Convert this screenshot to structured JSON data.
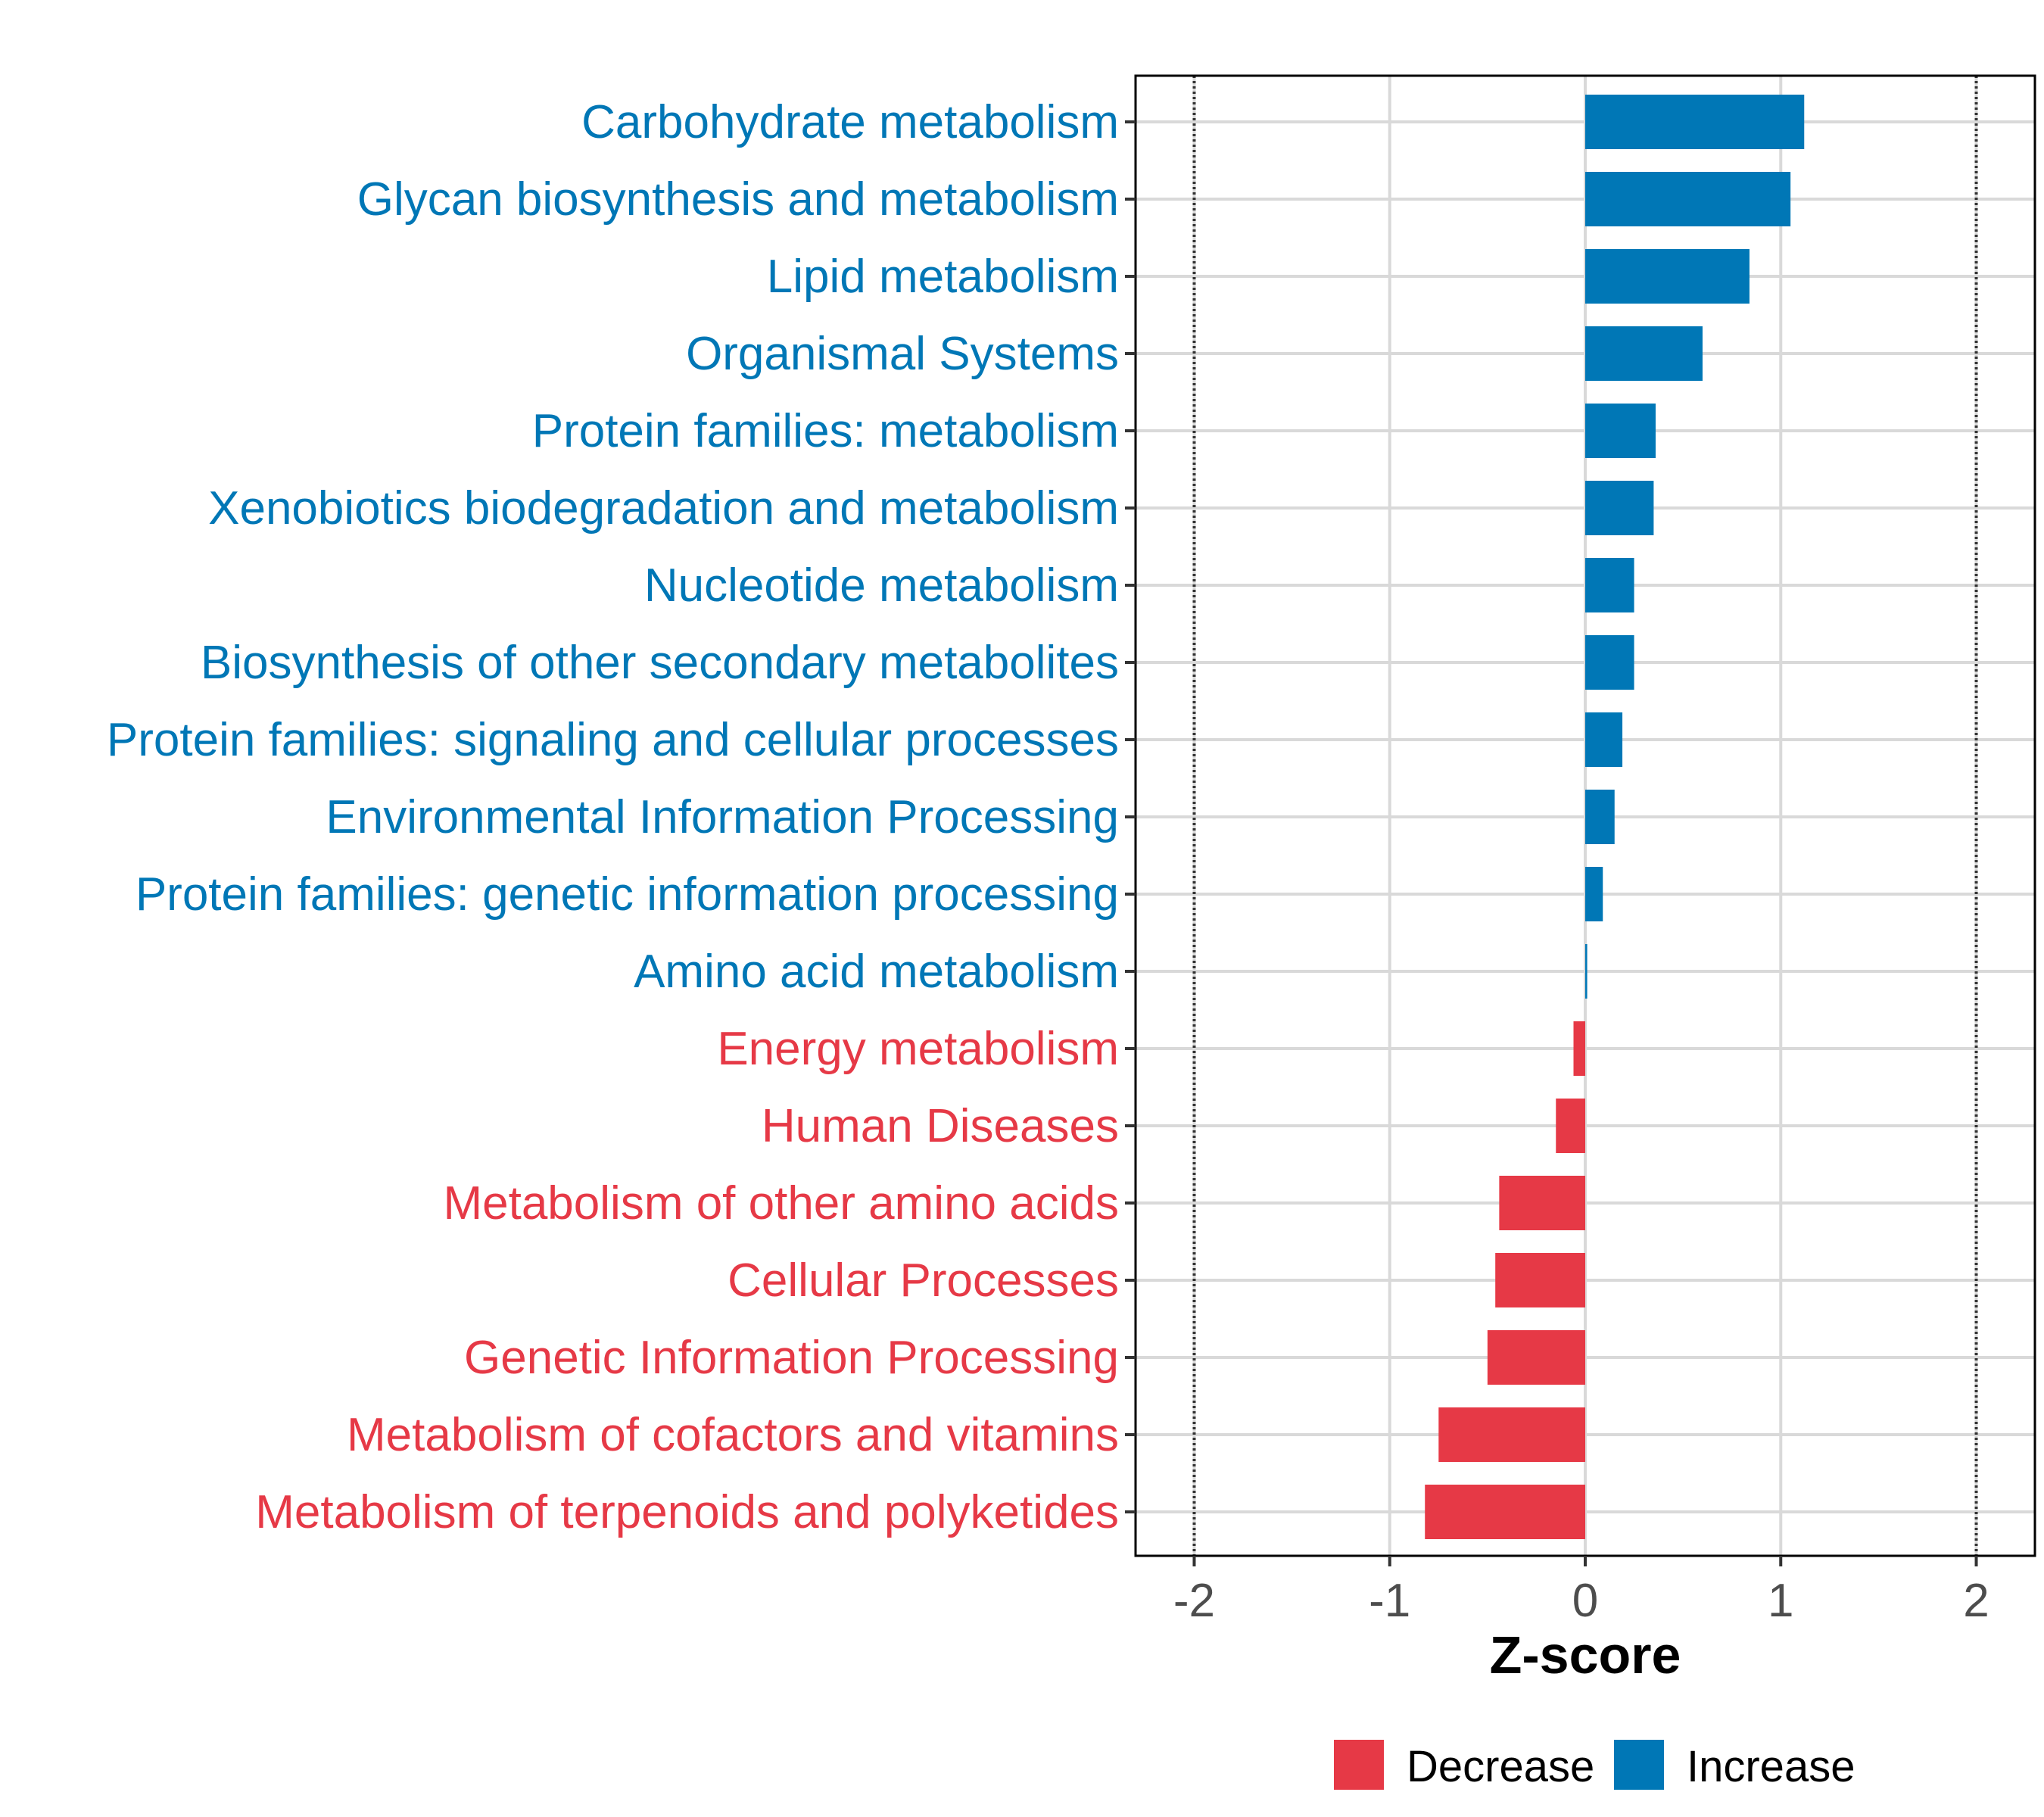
{
  "chart_data": {
    "type": "bar",
    "orientation": "horizontal",
    "title": "",
    "xlabel": "Z-score",
    "ylabel": "",
    "xlim": [
      -2.3,
      2.3
    ],
    "xticks": [
      -2,
      -1,
      0,
      1,
      2
    ],
    "xtick_labels": [
      "-2",
      "-1",
      "0",
      "1",
      "2"
    ],
    "reference_lines": [
      -2,
      2
    ],
    "grid": true,
    "legend_position": "bottom",
    "categories": [
      "Carbohydrate metabolism",
      "Glycan biosynthesis and metabolism",
      "Lipid metabolism",
      "Organismal Systems",
      "Protein families: metabolism",
      "Xenobiotics biodegradation and metabolism",
      "Nucleotide metabolism",
      "Biosynthesis of other secondary metabolites",
      "Protein families: signaling and cellular processes",
      "Environmental Information Processing",
      "Protein families: genetic information processing",
      "Amino acid metabolism",
      "Energy metabolism",
      "Human Diseases",
      "Metabolism of other amino acids",
      "Cellular Processes",
      "Genetic Information Processing",
      "Metabolism of cofactors and vitamins",
      "Metabolism of terpenoids and polyketides"
    ],
    "values": [
      1.12,
      1.05,
      0.84,
      0.6,
      0.36,
      0.35,
      0.25,
      0.25,
      0.19,
      0.15,
      0.09,
      0.01,
      -0.06,
      -0.15,
      -0.44,
      -0.46,
      -0.5,
      -0.75,
      -0.82
    ],
    "groups": [
      "Increase",
      "Increase",
      "Increase",
      "Increase",
      "Increase",
      "Increase",
      "Increase",
      "Increase",
      "Increase",
      "Increase",
      "Increase",
      "Increase",
      "Decrease",
      "Decrease",
      "Decrease",
      "Decrease",
      "Decrease",
      "Decrease",
      "Decrease"
    ],
    "legend": [
      {
        "name": "Decrease",
        "color": "#E63946"
      },
      {
        "name": "Increase",
        "color": "#0077B6"
      }
    ],
    "colors": {
      "Increase": "#0077B6",
      "Decrease": "#E63946"
    }
  }
}
